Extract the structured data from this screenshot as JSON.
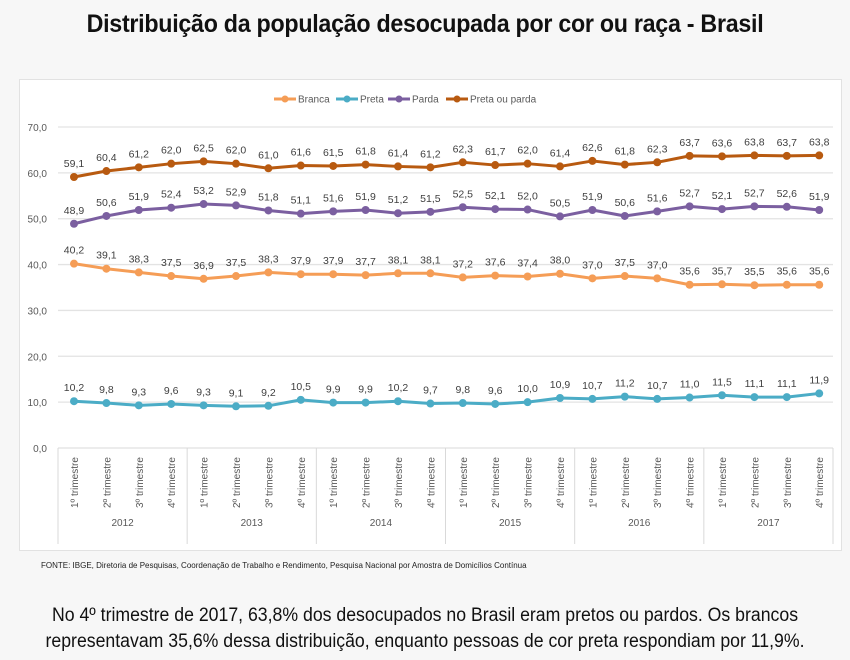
{
  "title": "Distribuição da população desocupada por cor ou raça - Brasil",
  "source": "FONTE: IBGE, Diretoria de Pesquisas, Coordenação de Trabalho e Rendimento, Pesquisa Nacional por Amostra de Domicílios Contínua",
  "caption_line1": "No 4º trimestre de 2017, 63,8% dos desocupados no Brasil eram pretos ou pardos. Os brancos",
  "caption_line2": "representavam 35,6% dessa distribuição, enquanto pessoas de cor preta respondiam por 11,9%.",
  "chart_data": {
    "type": "line",
    "title": "",
    "xlabel": "",
    "ylabel": "",
    "ylim": [
      0,
      70
    ],
    "yticks": [
      0,
      10,
      20,
      30,
      40,
      50,
      60,
      70
    ],
    "ytick_labels": [
      "0,0",
      "10,0",
      "20,0",
      "30,0",
      "40,0",
      "50,0",
      "60,0",
      "70,0"
    ],
    "grid": true,
    "legend_position": "top-center",
    "quarters": [
      "1º trimestre",
      "2º trimestre",
      "3º trimestre",
      "4º trimestre"
    ],
    "years": [
      "2012",
      "2013",
      "2014",
      "2015",
      "2016",
      "2017"
    ],
    "categories": [
      "2012 1º trimestre",
      "2012 2º trimestre",
      "2012 3º trimestre",
      "2012 4º trimestre",
      "2013 1º trimestre",
      "2013 2º trimestre",
      "2013 3º trimestre",
      "2013 4º trimestre",
      "2014 1º trimestre",
      "2014 2º trimestre",
      "2014 3º trimestre",
      "2014 4º trimestre",
      "2015 1º trimestre",
      "2015 2º trimestre",
      "2015 3º trimestre",
      "2015 4º trimestre",
      "2016 1º trimestre",
      "2016 2º trimestre",
      "2016 3º trimestre",
      "2016 4º trimestre",
      "2017 1º trimestre",
      "2017 2º trimestre",
      "2017 3º trimestre",
      "2017 4º trimestre"
    ],
    "series": [
      {
        "name": "Branca",
        "color": "#f59d56",
        "label_pos": "above",
        "values": [
          40.2,
          39.1,
          38.3,
          37.5,
          36.9,
          37.5,
          38.3,
          37.9,
          37.9,
          37.7,
          38.1,
          38.1,
          37.2,
          37.6,
          37.4,
          38.0,
          37.0,
          37.5,
          37.0,
          35.6,
          35.7,
          35.5,
          35.6,
          35.6
        ]
      },
      {
        "name": "Preta",
        "color": "#4bacc6",
        "label_pos": "above",
        "values": [
          10.2,
          9.8,
          9.3,
          9.6,
          9.3,
          9.1,
          9.2,
          10.5,
          9.9,
          9.9,
          10.2,
          9.7,
          9.8,
          9.6,
          10.0,
          10.9,
          10.7,
          11.2,
          10.7,
          11.0,
          11.5,
          11.1,
          11.1,
          11.9
        ]
      },
      {
        "name": "Parda",
        "color": "#7b5fa0",
        "label_pos": "above",
        "values": [
          48.9,
          50.6,
          51.9,
          52.4,
          53.2,
          52.9,
          51.8,
          51.1,
          51.6,
          51.9,
          51.2,
          51.5,
          52.5,
          52.1,
          52.0,
          50.5,
          51.9,
          50.6,
          51.6,
          52.7,
          52.1,
          52.7,
          52.6,
          51.9
        ]
      },
      {
        "name": "Preta ou parda",
        "color": "#b85a10",
        "label_pos": "above",
        "values": [
          59.1,
          60.4,
          61.2,
          62.0,
          62.5,
          62.0,
          61.0,
          61.6,
          61.5,
          61.8,
          61.4,
          61.2,
          62.3,
          61.7,
          62.0,
          61.4,
          62.6,
          61.8,
          62.3,
          63.7,
          63.6,
          63.8,
          63.7,
          63.8
        ]
      }
    ]
  }
}
